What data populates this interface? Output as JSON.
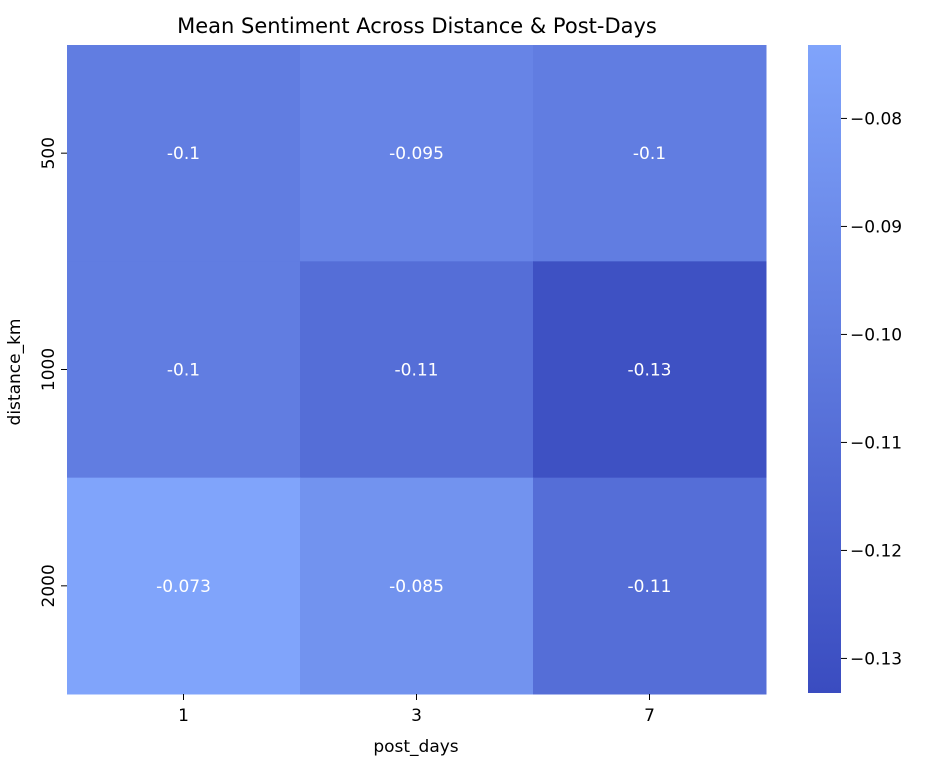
{
  "chart_data": {
    "type": "heatmap",
    "title": "Mean Sentiment Across Distance & Post-Days",
    "xlabel": "post_days",
    "ylabel": "distance_km",
    "x_categories": [
      "1",
      "3",
      "7"
    ],
    "y_categories": [
      "500",
      "1000",
      "2000"
    ],
    "values": [
      [
        -0.1,
        -0.095,
        -0.1
      ],
      [
        -0.1,
        -0.11,
        -0.13
      ],
      [
        -0.073,
        -0.085,
        -0.11
      ]
    ],
    "annotations": [
      [
        "-0.1",
        "-0.095",
        "-0.1"
      ],
      [
        "-0.1",
        "-0.11",
        "-0.13"
      ],
      [
        "-0.073",
        "-0.085",
        "-0.11"
      ]
    ],
    "colorbar": {
      "range": [
        -0.1332,
        -0.0732
      ],
      "ticks": [
        -0.08,
        -0.09,
        -0.1,
        -0.11,
        -0.12,
        -0.13
      ],
      "tick_labels": [
        "−0.08",
        "−0.09",
        "−0.10",
        "−0.11",
        "−0.12",
        "−0.13"
      ],
      "low_color": "#3a4cc0",
      "high_color": "#80a4fb"
    },
    "annotation_color": "#ffffff"
  }
}
